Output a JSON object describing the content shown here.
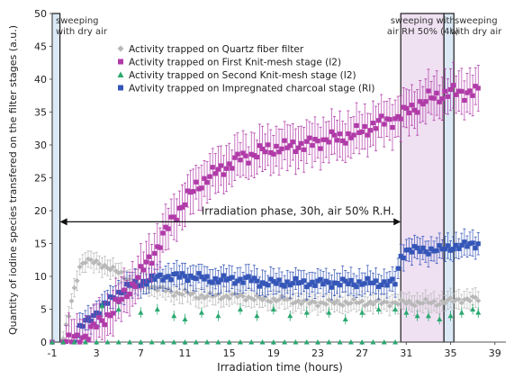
{
  "chart_data": {
    "type": "scatter",
    "xlabel": "Irradiation time (hours)",
    "ylabel": "Quantity of iodine species transfered on the filter stages (a.u.)",
    "xlim": [
      -1,
      40
    ],
    "ylim": [
      0,
      50
    ],
    "xticks": [
      -1,
      3,
      7,
      11,
      15,
      19,
      23,
      27,
      31,
      35,
      39
    ],
    "yticks": [
      0,
      5,
      10,
      15,
      20,
      25,
      30,
      35,
      40,
      45,
      50
    ],
    "grid": false,
    "legend_position": "top-left",
    "colors": {
      "quartz": "#b8b8b8",
      "knit1": "#b03aa8",
      "knit2": "#2aa870",
      "charcoal": "#3556b8",
      "dry_band": "#cfe2f3",
      "humid_band": "#ead5ee"
    },
    "regions": [
      {
        "label_line1": "sweeping",
        "label_line2": "with dry air",
        "x_start": -1,
        "x_end": -0.3,
        "shade": "dry"
      },
      {
        "label_line1": "sweeping with",
        "label_line2": "air RH 50% (4h)",
        "x_start": 30.5,
        "x_end": 34.4,
        "shade": "humid"
      },
      {
        "label_line1": "sweeping",
        "label_line2": "with dry air",
        "x_start": 34.4,
        "x_end": 35.3,
        "shade": "dry"
      }
    ],
    "annotation": {
      "text": "Irradiation phase, 30h, air 50% R.H.",
      "x_start": -0.3,
      "x_end": 30.5,
      "y": 18.3
    },
    "series": [
      {
        "name": "Activity trapped on Quartz fiber filter",
        "marker": "diamond",
        "color_key": "quartz",
        "points": [
          [
            -1,
            0
          ],
          [
            0,
            0.5
          ],
          [
            0.5,
            4
          ],
          [
            1,
            8
          ],
          [
            1.5,
            11.5
          ],
          [
            2,
            12.5
          ],
          [
            3,
            12
          ],
          [
            4,
            11.5
          ],
          [
            5,
            10.5
          ],
          [
            6,
            9.5
          ],
          [
            7,
            9
          ],
          [
            8,
            8.5
          ],
          [
            9,
            8
          ],
          [
            10,
            7.5
          ],
          [
            11,
            7.5
          ],
          [
            12,
            7
          ],
          [
            14,
            7
          ],
          [
            16,
            7
          ],
          [
            18,
            6.5
          ],
          [
            20,
            6.5
          ],
          [
            22,
            6
          ],
          [
            24,
            6
          ],
          [
            26,
            6
          ],
          [
            28,
            6
          ],
          [
            30,
            6
          ],
          [
            32,
            6
          ],
          [
            34,
            6
          ],
          [
            36,
            6.5
          ],
          [
            37.5,
            6.5
          ]
        ],
        "error": 1.5
      },
      {
        "name": "Activity trapped on First Knit-mesh stage (I2)",
        "marker": "square",
        "color_key": "knit1",
        "points": [
          [
            -1,
            0
          ],
          [
            0,
            0
          ],
          [
            1,
            0.3
          ],
          [
            2,
            1
          ],
          [
            3,
            2.5
          ],
          [
            4,
            4
          ],
          [
            5,
            6
          ],
          [
            6,
            8
          ],
          [
            7,
            10.5
          ],
          [
            8,
            13
          ],
          [
            9,
            16
          ],
          [
            10,
            19
          ],
          [
            11,
            21.5
          ],
          [
            12,
            23.5
          ],
          [
            13,
            25
          ],
          [
            14,
            26
          ],
          [
            15,
            27
          ],
          [
            16,
            28
          ],
          [
            17,
            28.5
          ],
          [
            18,
            29
          ],
          [
            19,
            29.5
          ],
          [
            20,
            29.5
          ],
          [
            21,
            30
          ],
          [
            22,
            30
          ],
          [
            23,
            30.5
          ],
          [
            24,
            31
          ],
          [
            25,
            31
          ],
          [
            26,
            31.5
          ],
          [
            27,
            32
          ],
          [
            28,
            33
          ],
          [
            29,
            33.5
          ],
          [
            30,
            34
          ],
          [
            31,
            35
          ],
          [
            32,
            36
          ],
          [
            33,
            37
          ],
          [
            34,
            37.5
          ],
          [
            35,
            38
          ],
          [
            36,
            38
          ],
          [
            37,
            38
          ],
          [
            37.5,
            38
          ]
        ],
        "error": 3.5
      },
      {
        "name": "Activity trapped on Second Knit-mesh stage (I2)",
        "marker": "triangle",
        "color_key": "knit2",
        "points": [
          [
            -1,
            0
          ],
          [
            0,
            0
          ],
          [
            1,
            0
          ],
          [
            2,
            0
          ],
          [
            3,
            0
          ],
          [
            4,
            0
          ],
          [
            5,
            0
          ],
          [
            6,
            0
          ],
          [
            7,
            0
          ],
          [
            8,
            0
          ],
          [
            9,
            0
          ],
          [
            10,
            0
          ],
          [
            11,
            0
          ],
          [
            12,
            0
          ],
          [
            13,
            0
          ],
          [
            14,
            0
          ],
          [
            15,
            0
          ],
          [
            16,
            0
          ],
          [
            17,
            0
          ],
          [
            18,
            0
          ],
          [
            19,
            0
          ],
          [
            20,
            0
          ],
          [
            21,
            0
          ],
          [
            22,
            0
          ],
          [
            23,
            0
          ],
          [
            24,
            0
          ],
          [
            25,
            0
          ],
          [
            26,
            0
          ],
          [
            27,
            0
          ],
          [
            28,
            0
          ],
          [
            29,
            0
          ],
          [
            30,
            0
          ]
        ],
        "scatter": [
          [
            3.5,
            5.5
          ],
          [
            5,
            5
          ],
          [
            7,
            4.5
          ],
          [
            8.5,
            5
          ],
          [
            10,
            4
          ],
          [
            11,
            3.5
          ],
          [
            12.5,
            4.5
          ],
          [
            14,
            4
          ],
          [
            16,
            5
          ],
          [
            17.5,
            4
          ],
          [
            19,
            5
          ],
          [
            20.5,
            4
          ],
          [
            22,
            4.5
          ],
          [
            24,
            4.5
          ],
          [
            25.5,
            3.5
          ],
          [
            27,
            4.5
          ],
          [
            28.5,
            5
          ],
          [
            30,
            5
          ],
          [
            31,
            4.5
          ],
          [
            32,
            4
          ],
          [
            33,
            4
          ],
          [
            34,
            3.5
          ],
          [
            35,
            4
          ],
          [
            36,
            4.5
          ],
          [
            37,
            5
          ],
          [
            37.5,
            4.5
          ]
        ],
        "error": 0.8
      },
      {
        "name": "Avtivity trapped on Impregnated charcoal stage (RI)",
        "marker": "square",
        "color_key": "charcoal",
        "points": [
          [
            -1,
            0
          ],
          [
            0,
            0
          ],
          [
            1,
            0
          ],
          [
            1.5,
            2
          ],
          [
            2,
            3
          ],
          [
            3,
            4.5
          ],
          [
            4,
            6
          ],
          [
            5,
            7.5
          ],
          [
            6,
            8.5
          ],
          [
            7,
            9
          ],
          [
            8,
            9.5
          ],
          [
            9,
            10
          ],
          [
            10,
            10
          ],
          [
            11,
            10
          ],
          [
            12,
            10
          ],
          [
            13,
            9.5
          ],
          [
            14,
            9.5
          ],
          [
            15,
            9.5
          ],
          [
            16,
            9.5
          ],
          [
            17,
            9.5
          ],
          [
            18,
            9
          ],
          [
            19,
            9
          ],
          [
            20,
            9
          ],
          [
            21,
            9
          ],
          [
            22,
            9
          ],
          [
            23,
            9
          ],
          [
            24,
            9
          ],
          [
            25,
            9
          ],
          [
            26,
            9
          ],
          [
            27,
            9
          ],
          [
            28,
            9
          ],
          [
            29,
            9
          ],
          [
            30,
            9
          ],
          [
            30.5,
            13
          ],
          [
            31,
            14
          ],
          [
            32,
            14
          ],
          [
            33,
            14
          ],
          [
            34,
            14
          ],
          [
            35,
            14.5
          ],
          [
            36,
            14.5
          ],
          [
            37,
            15
          ],
          [
            37.5,
            15
          ]
        ],
        "error": 2
      }
    ]
  }
}
